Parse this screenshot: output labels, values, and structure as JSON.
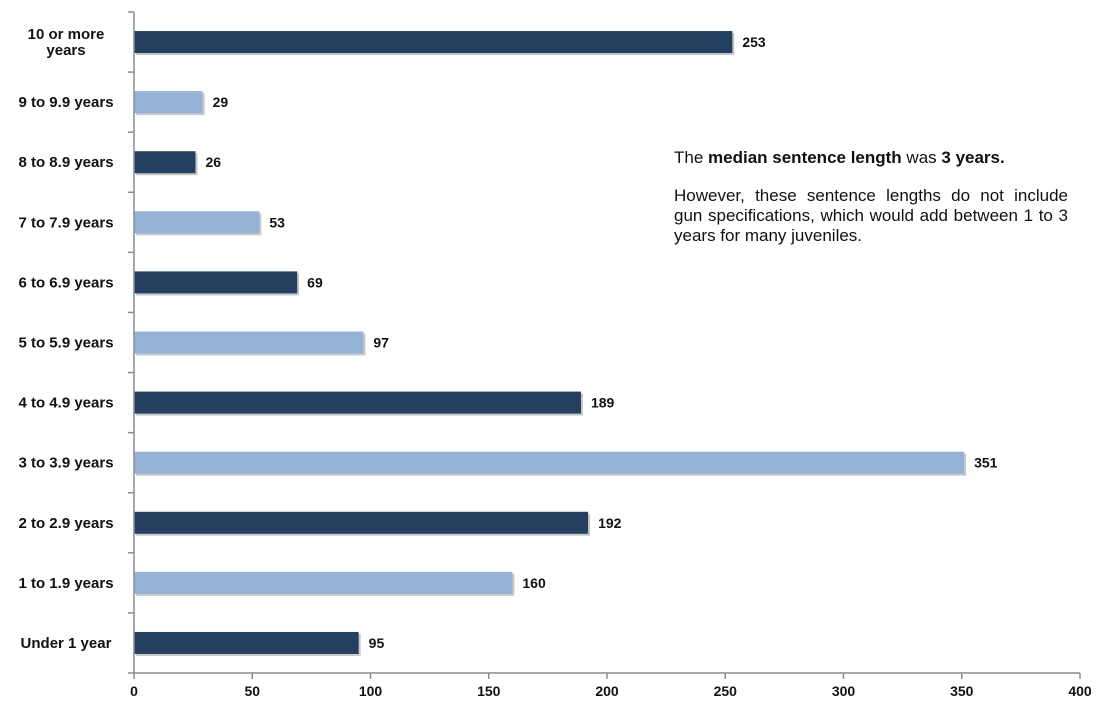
{
  "chart_data": {
    "type": "bar",
    "orientation": "horizontal",
    "categories": [
      "10 or more years",
      "9 to 9.9 years",
      "8 to 8.9 years",
      "7 to 7.9 years",
      "6 to 6.9 years",
      "5 to 5.9 years",
      "4 to 4.9 years",
      "3 to 3.9 years",
      "2 to 2.9 years",
      "1 to 1.9 years",
      "Under 1 year"
    ],
    "category_lines": [
      [
        "10 or more",
        "years"
      ],
      [
        "9 to 9.9 years"
      ],
      [
        "8 to 8.9 years"
      ],
      [
        "7 to 7.9 years"
      ],
      [
        "6 to 6.9 years"
      ],
      [
        "5 to 5.9 years"
      ],
      [
        "4 to 4.9 years"
      ],
      [
        "3 to 3.9 years"
      ],
      [
        "2 to 2.9 years"
      ],
      [
        "1 to 1.9 years"
      ],
      [
        "Under 1 year"
      ]
    ],
    "values": [
      253,
      29,
      26,
      53,
      69,
      97,
      189,
      351,
      192,
      160,
      95
    ],
    "bar_colors": [
      "#243f60",
      "#95b3d7",
      "#243f60",
      "#95b3d7",
      "#243f60",
      "#95b3d7",
      "#243f60",
      "#95b3d7",
      "#243f60",
      "#95b3d7",
      "#243f60"
    ],
    "xlim": [
      0,
      400
    ],
    "xticks": [
      0,
      50,
      100,
      150,
      200,
      250,
      300,
      350,
      400
    ],
    "title": "",
    "xlabel": "",
    "ylabel": "",
    "grid": false,
    "legend": "none"
  },
  "annotation": {
    "line1_pre": "The ",
    "line1_bold1": "median sentence length",
    "line1_mid": " was ",
    "line1_bold2": "3 years.",
    "note": "However, these sentence lengths do not include gun specifications, which would add between 1 to 3 years for many juveniles."
  }
}
